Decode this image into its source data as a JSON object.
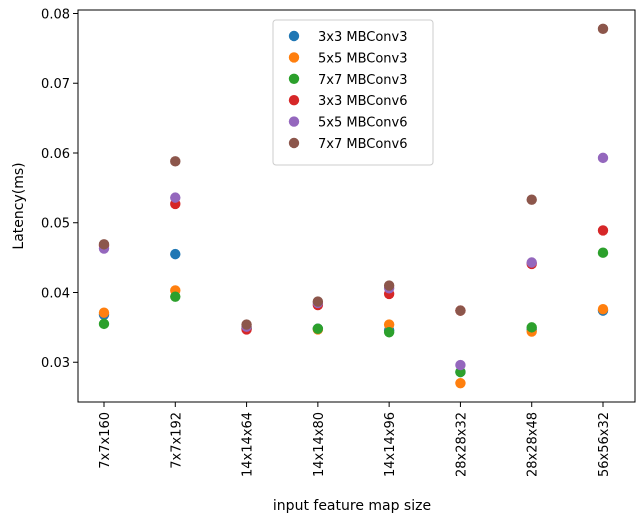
{
  "chart_data": {
    "type": "scatter",
    "title": "",
    "xlabel": "input feature map size",
    "ylabel": "Latency(ms)",
    "categories": [
      "7x7x160",
      "7x7x192",
      "14x14x64",
      "14x14x80",
      "14x14x96",
      "28x28x32",
      "28x28x48",
      "56x56x32"
    ],
    "y_ticks": [
      "0.03",
      "0.04",
      "0.05",
      "0.06",
      "0.07",
      "0.08"
    ],
    "ylim": [
      0.0243,
      0.0805
    ],
    "grid": false,
    "legend_position": "upper center",
    "series": [
      {
        "name": "3x3 MBConv3",
        "color": "#1f77b4",
        "values": [
          0.0368,
          0.0455,
          0.0348,
          0.0348,
          0.0346,
          0.0286,
          0.0347,
          0.0374
        ]
      },
      {
        "name": "5x5 MBConv3",
        "color": "#ff7f0e",
        "values": [
          0.0371,
          0.0403,
          0.035,
          0.0347,
          0.0354,
          0.027,
          0.0344,
          0.0376
        ]
      },
      {
        "name": "7x7 MBConv3",
        "color": "#2ca02c",
        "values": [
          0.0355,
          0.0394,
          0.0349,
          0.0348,
          0.0343,
          0.0286,
          0.035,
          0.0457
        ]
      },
      {
        "name": "3x3 MBConv6",
        "color": "#d62728",
        "values": [
          0.0467,
          0.0527,
          0.0347,
          0.0382,
          0.0398,
          0.0374,
          0.0441,
          0.0489
        ]
      },
      {
        "name": "5x5 MBConv6",
        "color": "#9467bd",
        "values": [
          0.0463,
          0.0536,
          0.0351,
          0.0385,
          0.0406,
          0.0296,
          0.0443,
          0.0593
        ]
      },
      {
        "name": "7x7 MBConv6",
        "color": "#8c564b",
        "values": [
          0.0469,
          0.0588,
          0.0354,
          0.0387,
          0.041,
          0.0374,
          0.0533,
          0.0778
        ]
      }
    ]
  }
}
